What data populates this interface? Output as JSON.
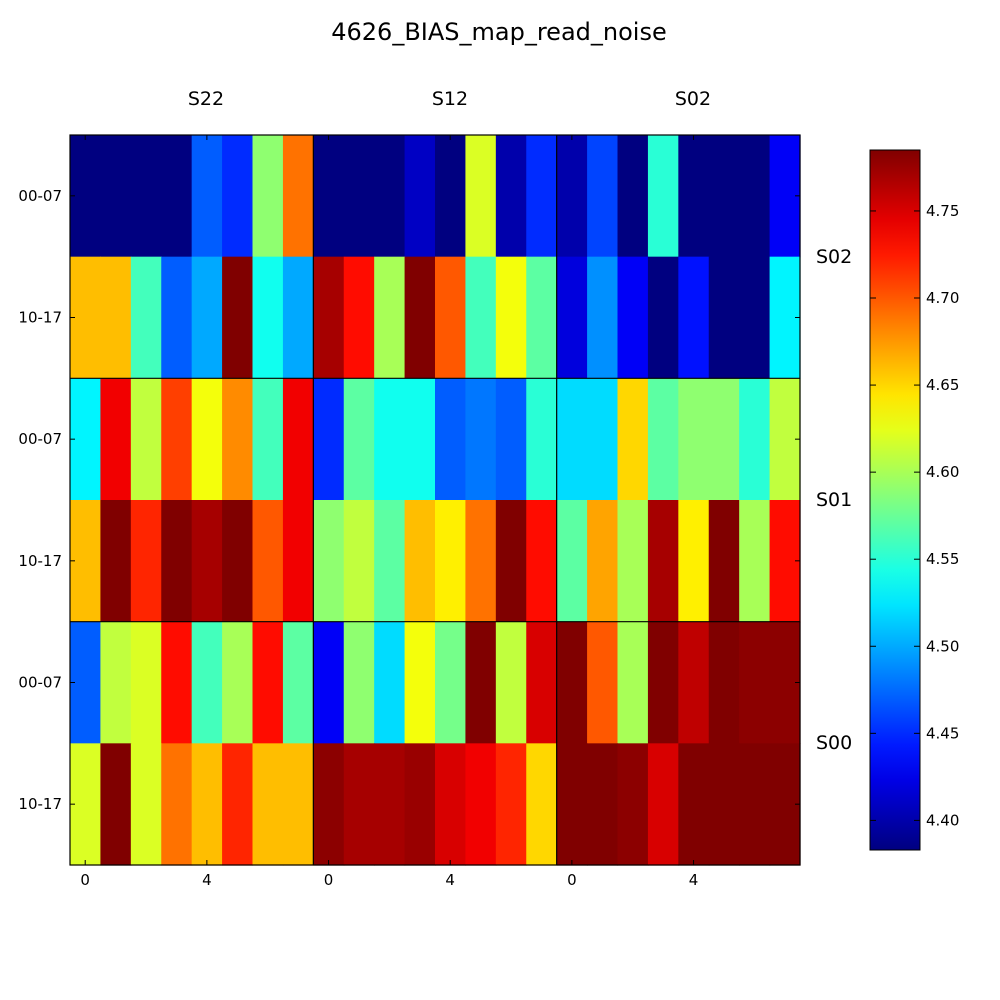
{
  "chart_data": {
    "type": "heatmap",
    "title": "4626_BIAS_map_read_noise",
    "column_sensors": [
      "S22",
      "S12",
      "S02"
    ],
    "row_sensors": [
      "S02",
      "S01",
      "S00"
    ],
    "x_tick_labels": [
      "0",
      "4"
    ],
    "y_tick_labels": [
      "00-07",
      "10-17"
    ],
    "colormap": "jet",
    "vmin": 4.383,
    "vmax": 4.785,
    "colorbar_ticks": [
      "4.40",
      "4.45",
      "4.50",
      "4.55",
      "4.60",
      "4.65",
      "4.70",
      "4.75"
    ],
    "values": [
      [
        4.383,
        4.383,
        4.383,
        4.383,
        4.47,
        4.45,
        4.59,
        4.69,
        4.383,
        4.383,
        4.383,
        4.41,
        4.383,
        4.62,
        4.4,
        4.45,
        4.4,
        4.46,
        4.383,
        4.55,
        4.383,
        4.383,
        4.383,
        4.43
      ],
      [
        4.66,
        4.66,
        4.56,
        4.47,
        4.5,
        4.785,
        4.54,
        4.5,
        4.77,
        4.73,
        4.6,
        4.785,
        4.7,
        4.56,
        4.63,
        4.57,
        4.42,
        4.49,
        4.43,
        4.383,
        4.44,
        4.383,
        4.383,
        4.53
      ],
      [
        4.53,
        4.74,
        4.61,
        4.71,
        4.63,
        4.68,
        4.56,
        4.74,
        4.45,
        4.57,
        4.54,
        4.54,
        4.47,
        4.48,
        4.47,
        4.55,
        4.52,
        4.52,
        4.65,
        4.57,
        4.59,
        4.59,
        4.55,
        4.61
      ],
      [
        4.66,
        4.785,
        4.72,
        4.785,
        4.77,
        4.785,
        4.7,
        4.74,
        4.59,
        4.61,
        4.57,
        4.66,
        4.64,
        4.69,
        4.785,
        4.73,
        4.57,
        4.67,
        4.6,
        4.77,
        4.64,
        4.785,
        4.6,
        4.73
      ],
      [
        4.47,
        4.61,
        4.62,
        4.73,
        4.56,
        4.6,
        4.73,
        4.57,
        4.43,
        4.59,
        4.52,
        4.63,
        4.58,
        4.785,
        4.61,
        4.75,
        4.785,
        4.7,
        4.6,
        4.785,
        4.76,
        4.785,
        4.78,
        4.78
      ],
      [
        4.62,
        4.785,
        4.62,
        4.69,
        4.66,
        4.72,
        4.66,
        4.66,
        4.78,
        4.77,
        4.77,
        4.775,
        4.75,
        4.74,
        4.72,
        4.65,
        4.785,
        4.785,
        4.78,
        4.75,
        4.785,
        4.785,
        4.785,
        4.785
      ]
    ]
  }
}
